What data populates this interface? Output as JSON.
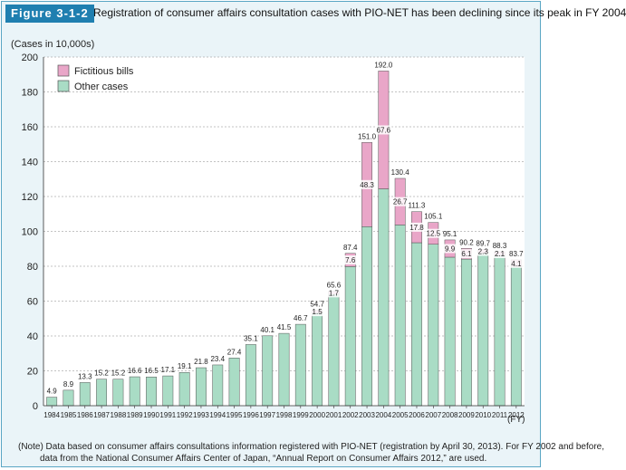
{
  "figure": {
    "label": "Figure 3-1-2",
    "title": "Registration of consumer affairs consultation cases with PIO-NET has been declining since its peak in FY 2004"
  },
  "note": {
    "line1": "(Note) Data based on consumer affairs consultations information registered with PIO-NET (registration by April 30, 2013). For FY 2002 and before,",
    "line2": "data from the National Consumer Affairs Center of Japan, “Annual Report on Consumer Affairs 2012,” are used."
  },
  "colors": {
    "fictitious": "#e9a6c8",
    "other": "#a9dcc5",
    "bar_stroke": "#555555",
    "grid": "#888888"
  },
  "chart_data": {
    "type": "bar",
    "stacked": true,
    "ylabel": "(Cases in 10,000s)",
    "xlabel": "(FY)",
    "ylim": [
      0,
      200
    ],
    "yticks": [
      0,
      20,
      40,
      60,
      80,
      100,
      120,
      140,
      160,
      180,
      200
    ],
    "grid": true,
    "legend_position": "top-left",
    "categories": [
      "1984",
      "1985",
      "1986",
      "1987",
      "1988",
      "1989",
      "1990",
      "1991",
      "1992",
      "1993",
      "1994",
      "1995",
      "1996",
      "1997",
      "1998",
      "1999",
      "2000",
      "2001",
      "2002",
      "2003",
      "2004",
      "2005",
      "2006",
      "2007",
      "2008",
      "2009",
      "2010",
      "2011",
      "2012"
    ],
    "totals": [
      4.9,
      8.9,
      13.3,
      15.2,
      15.2,
      16.6,
      16.5,
      17.1,
      19.1,
      21.8,
      23.4,
      27.4,
      35.1,
      40.1,
      41.5,
      46.7,
      54.7,
      65.6,
      87.4,
      151.0,
      192.0,
      130.4,
      111.3,
      105.1,
      95.1,
      90.2,
      89.7,
      88.3,
      83.7
    ],
    "series": [
      {
        "name": "Fictitious bills",
        "key": "fictitious",
        "values": [
          0,
          0,
          0,
          0,
          0,
          0,
          0,
          0,
          0,
          0,
          0,
          0,
          0,
          0,
          0,
          0,
          1.5,
          1.7,
          7.6,
          48.3,
          67.6,
          26.7,
          17.8,
          12.5,
          9.9,
          6.1,
          2.3,
          2.1,
          4.1
        ]
      },
      {
        "name": "Other cases",
        "key": "other",
        "values": [
          4.9,
          8.9,
          13.3,
          15.2,
          15.2,
          16.6,
          16.5,
          17.1,
          19.1,
          21.8,
          23.4,
          27.4,
          35.1,
          40.1,
          41.5,
          46.7,
          53.2,
          63.9,
          79.8,
          102.7,
          124.4,
          103.7,
          93.5,
          92.6,
          85.2,
          84.1,
          87.4,
          86.2,
          79.6
        ]
      }
    ],
    "fictitious_labels": [
      "",
      "",
      "",
      "",
      "",
      "",
      "",
      "",
      "",
      "",
      "",
      "",
      "",
      "",
      "",
      "",
      "1.5",
      "1.7",
      "7.6",
      "48.3",
      "67.6",
      "26.7",
      "17.8",
      "12.5",
      "9.9",
      "6.1",
      "2.3",
      "2.1",
      "4.1"
    ],
    "total_labels": [
      "4.9",
      "8.9",
      "13.3",
      "15.2",
      "15.2",
      "16.6",
      "16.5",
      "17.1",
      "19.1",
      "21.8",
      "23.4",
      "27.4",
      "35.1",
      "40.1",
      "41.5",
      "46.7",
      "54.7",
      "65.6",
      "87.4",
      "151.0",
      "192.0",
      "130.4",
      "111.3",
      "105.1",
      "95.1",
      "90.2",
      "89.7",
      "88.3",
      "83.7"
    ]
  }
}
